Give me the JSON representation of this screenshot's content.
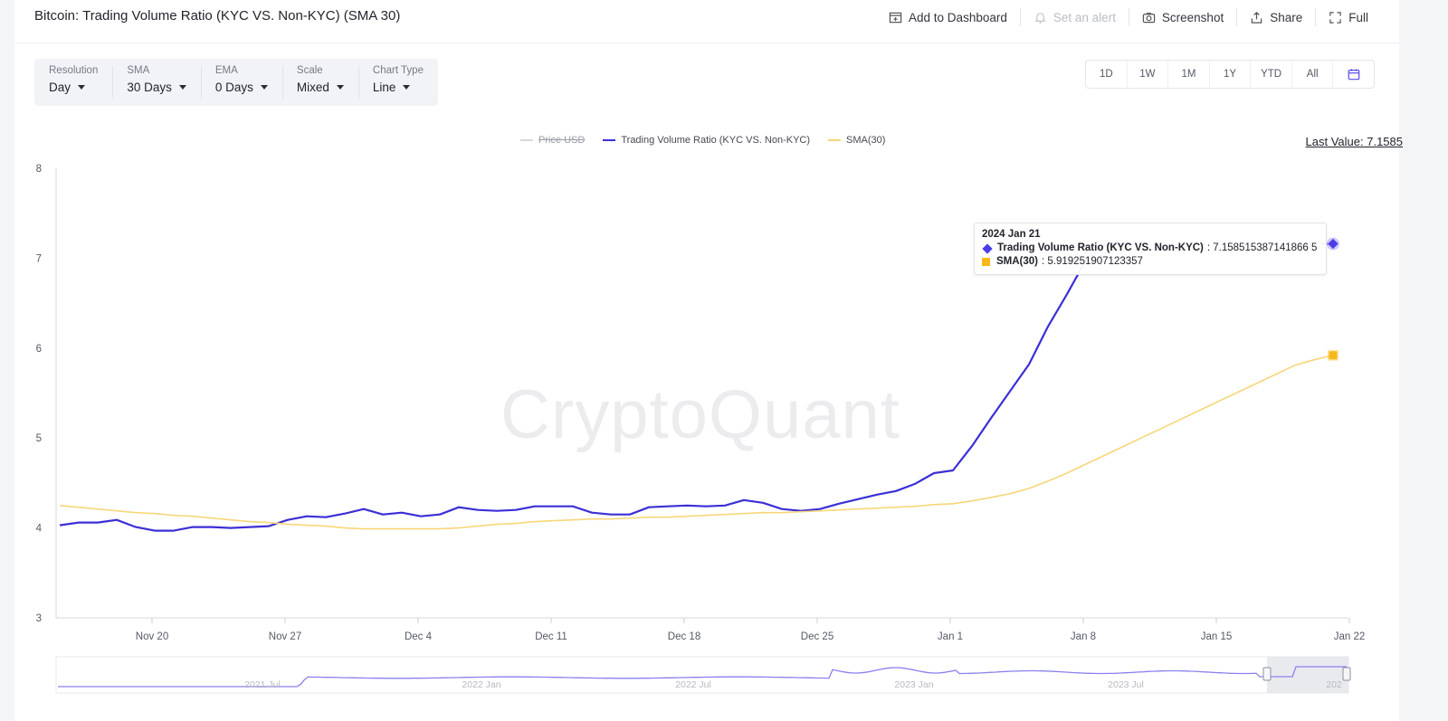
{
  "header": {
    "title": "Bitcoin: Trading Volume Ratio (KYC VS. Non-KYC) (SMA 30)",
    "actions": [
      {
        "label": "Add to Dashboard",
        "icon": "dashboard-add-icon"
      },
      {
        "label": "Set an alert",
        "icon": "bell-icon",
        "disabled": true
      },
      {
        "label": "Screenshot",
        "icon": "camera-icon"
      },
      {
        "label": "Share",
        "icon": "share-icon"
      },
      {
        "label": "Full",
        "icon": "fullscreen-icon"
      }
    ]
  },
  "controls": [
    {
      "label": "Resolution",
      "value": "Day"
    },
    {
      "label": "SMA",
      "value": "30 Days"
    },
    {
      "label": "EMA",
      "value": "0 Days"
    },
    {
      "label": "Scale",
      "value": "Mixed"
    },
    {
      "label": "Chart Type",
      "value": "Line"
    }
  ],
  "ranges": [
    "1D",
    "1W",
    "1M",
    "1Y",
    "YTD",
    "All"
  ],
  "legend": [
    {
      "label": "Price USD",
      "color": "#d8d8dc",
      "hidden": true
    },
    {
      "label": "Trading Volume Ratio (KYC VS. Non-KYC)",
      "color": "#3b2fd6"
    },
    {
      "label": "SMA(30)",
      "color": "#f7d67a"
    }
  ],
  "last_value": "Last Value: 7.1585",
  "watermark": "CryptoQuant",
  "tooltip": {
    "date": "2024 Jan 21",
    "rows": [
      {
        "name": "Trading Volume Ratio (KYC VS. Non-KYC)",
        "value": ": 7.158515387141866 5"
      },
      {
        "name": "SMA(30)",
        "value": ": 5.919251907123357"
      }
    ]
  },
  "chart_data": {
    "type": "line",
    "ylim": [
      3,
      8
    ],
    "yticks": [
      "3",
      "4",
      "5",
      "6",
      "7",
      "8"
    ],
    "xtick_labels": [
      "Nov 20",
      "Nov 27",
      "Dec 4",
      "Dec 11",
      "Dec 18",
      "Dec 25",
      "Jan 1",
      "Jan 8",
      "Jan 15",
      "Jan 22"
    ],
    "x": [
      "Nov 15",
      "Nov 16",
      "Nov 17",
      "Nov 18",
      "Nov 19",
      "Nov 20",
      "Nov 21",
      "Nov 22",
      "Nov 23",
      "Nov 24",
      "Nov 25",
      "Nov 26",
      "Nov 27",
      "Nov 28",
      "Nov 29",
      "Nov 30",
      "Dec 1",
      "Dec 2",
      "Dec 3",
      "Dec 4",
      "Dec 5",
      "Dec 6",
      "Dec 7",
      "Dec 8",
      "Dec 9",
      "Dec 10",
      "Dec 11",
      "Dec 12",
      "Dec 13",
      "Dec 14",
      "Dec 15",
      "Dec 16",
      "Dec 17",
      "Dec 18",
      "Dec 19",
      "Dec 20",
      "Dec 21",
      "Dec 22",
      "Dec 23",
      "Dec 24",
      "Dec 25",
      "Dec 26",
      "Dec 27",
      "Dec 28",
      "Dec 29",
      "Dec 30",
      "Dec 31",
      "Jan 1",
      "Jan 2",
      "Jan 3",
      "Jan 4",
      "Jan 5",
      "Jan 6",
      "Jan 7",
      "Jan 8",
      "Jan 9",
      "Jan 10",
      "Jan 11",
      "Jan 12",
      "Jan 13",
      "Jan 14",
      "Jan 15",
      "Jan 16",
      "Jan 17",
      "Jan 18",
      "Jan 19",
      "Jan 20",
      "Jan 21"
    ],
    "series": [
      {
        "name": "Trading Volume Ratio (KYC VS. Non-KYC)",
        "color": "#3b2fd6",
        "values": [
          4.03,
          4.06,
          4.06,
          4.09,
          4.01,
          3.97,
          3.97,
          4.01,
          4.01,
          4.0,
          4.01,
          4.02,
          4.09,
          4.13,
          4.12,
          4.16,
          4.21,
          4.15,
          4.17,
          4.13,
          4.15,
          4.23,
          4.2,
          4.19,
          4.2,
          4.24,
          4.24,
          4.24,
          4.17,
          4.15,
          4.15,
          4.23,
          4.24,
          4.25,
          4.24,
          4.25,
          4.31,
          4.28,
          4.21,
          4.19,
          4.21,
          4.27,
          4.32,
          4.37,
          4.41,
          4.49,
          4.61,
          4.64,
          4.91,
          5.22,
          5.52,
          5.82,
          6.24,
          6.6,
          6.98,
          7.15,
          7.16,
          7.16,
          7.16,
          7.16,
          7.16,
          7.16,
          7.16,
          7.16,
          7.16,
          7.16,
          7.16,
          7.16
        ],
        "visible_until_index": 57
      },
      {
        "name": "SMA(30)",
        "color": "#f7d67a",
        "values": [
          4.25,
          4.23,
          4.21,
          4.19,
          4.17,
          4.16,
          4.14,
          4.13,
          4.11,
          4.09,
          4.07,
          4.06,
          4.04,
          4.03,
          4.02,
          4.0,
          3.99,
          3.99,
          3.99,
          3.99,
          3.99,
          4.0,
          4.02,
          4.04,
          4.05,
          4.07,
          4.08,
          4.09,
          4.1,
          4.1,
          4.11,
          4.12,
          4.12,
          4.13,
          4.14,
          4.15,
          4.16,
          4.17,
          4.17,
          4.18,
          4.19,
          4.2,
          4.21,
          4.22,
          4.23,
          4.24,
          4.26,
          4.27,
          4.3,
          4.34,
          4.38,
          4.44,
          4.52,
          4.61,
          4.71,
          4.81,
          4.91,
          5.01,
          5.11,
          5.21,
          5.31,
          5.41,
          5.51,
          5.61,
          5.71,
          5.81,
          5.87,
          5.92
        ]
      }
    ],
    "navigator": {
      "labels": [
        "2021 Jul",
        "2022 Jan",
        "2022 Jul",
        "2023 Jan",
        "2023 Jul",
        "202"
      ]
    }
  }
}
